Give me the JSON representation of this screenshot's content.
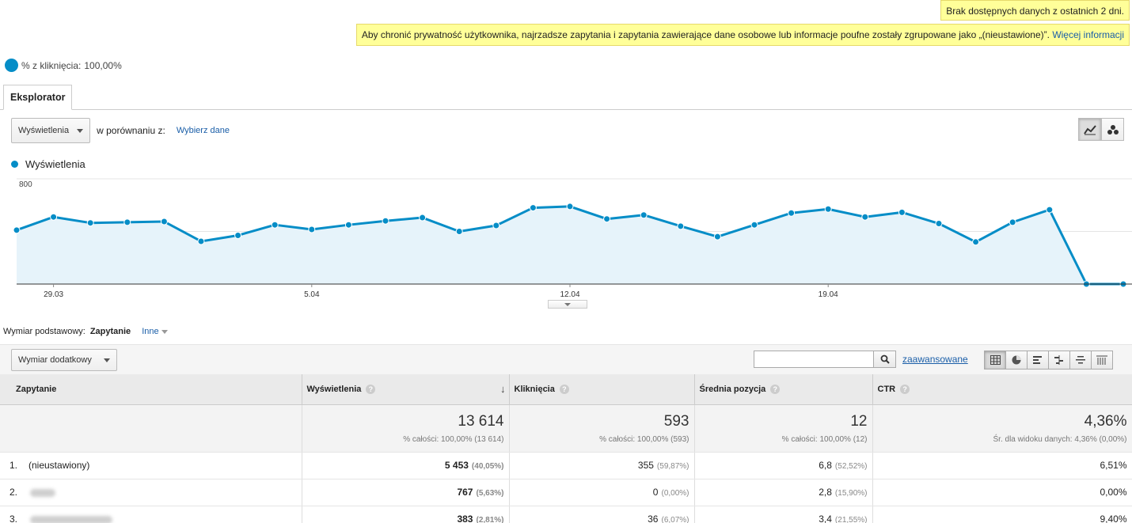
{
  "notices": {
    "no_data": "Brak dostępnych danych z ostatnich 2 dni.",
    "privacy": "Aby chronić prywatność użytkownika, najrzadsze zapytania i zapytania zawierające dane osobowe lub informacje poufne zostały zgrupowane jako „(nieustawione)”.",
    "privacy_link": "Więcej informacji"
  },
  "summary": {
    "label": "% z kliknięcia:",
    "value": "100,00%"
  },
  "tabs": [
    {
      "label": "Eksplorator"
    }
  ],
  "controls": {
    "metric_select": "Wyświetlenia",
    "compare_label": "w porównaniu z:",
    "compare_link": "Wybierz dane"
  },
  "chart_data": {
    "type": "line",
    "series": [
      {
        "name": "Wyświetlenia",
        "values": [
          410,
          510,
          465,
          470,
          475,
          325,
          370,
          450,
          415,
          450,
          480,
          505,
          400,
          445,
          580,
          590,
          495,
          525,
          440,
          360,
          450,
          540,
          570,
          510,
          545,
          460,
          320,
          470,
          565,
          0,
          0
        ]
      }
    ],
    "x_tick_labels": [
      "29.03",
      "5.04",
      "12.04",
      "19.04"
    ],
    "x_tick_index": [
      1,
      8,
      15,
      22
    ],
    "y_tick_labels": [
      "800",
      "400"
    ],
    "y_ticks": [
      800,
      400
    ],
    "ylim": [
      0,
      800
    ],
    "grid": true,
    "color": "#058dc7"
  },
  "dimension": {
    "label": "Wymiar podstawowy:",
    "value": "Zapytanie",
    "other": "Inne"
  },
  "toolbar": {
    "secondary_dim": "Wymiar dodatkowy",
    "search_placeholder": "",
    "advanced": "zaawansowane",
    "search_icon": "search-icon",
    "view_icons": [
      "table-view-icon",
      "pie-view-icon",
      "performance-view-icon",
      "comparison-view-icon",
      "term-cloud-view-icon",
      "pivot-view-icon"
    ]
  },
  "table": {
    "headers": [
      "Zapytanie",
      "Wyświetlenia",
      "Kliknięcia",
      "Średnia pozycja",
      "CTR"
    ],
    "totals": [
      {
        "value": "13 614",
        "sub": "% całości: 100,00% (13 614)"
      },
      {
        "value": "593",
        "sub": "% całości: 100,00% (593)"
      },
      {
        "value": "12",
        "sub": "% całości: 100,00% (12)"
      },
      {
        "value": "4,36%",
        "sub": "Śr. dla widoku danych: 4,36% (0,00%)"
      }
    ],
    "rows": [
      {
        "idx": "1.",
        "query": "(nieustawiony)",
        "impr": "5 453",
        "impr_pct": "(40,05%)",
        "clicks": "355",
        "clicks_pct": "(59,87%)",
        "pos": "6,8",
        "pos_pct": "(52,52%)",
        "ctr": "6,51%"
      },
      {
        "idx": "2.",
        "query": "",
        "impr": "767",
        "impr_pct": "(5,63%)",
        "clicks": "0",
        "clicks_pct": "(0,00%)",
        "pos": "2,8",
        "pos_pct": "(15,90%)",
        "ctr": "0,00%"
      },
      {
        "idx": "3.",
        "query": "",
        "impr": "383",
        "impr_pct": "(2,81%)",
        "clicks": "36",
        "clicks_pct": "(6,07%)",
        "pos": "3,4",
        "pos_pct": "(21,55%)",
        "ctr": "9,40%"
      }
    ]
  }
}
